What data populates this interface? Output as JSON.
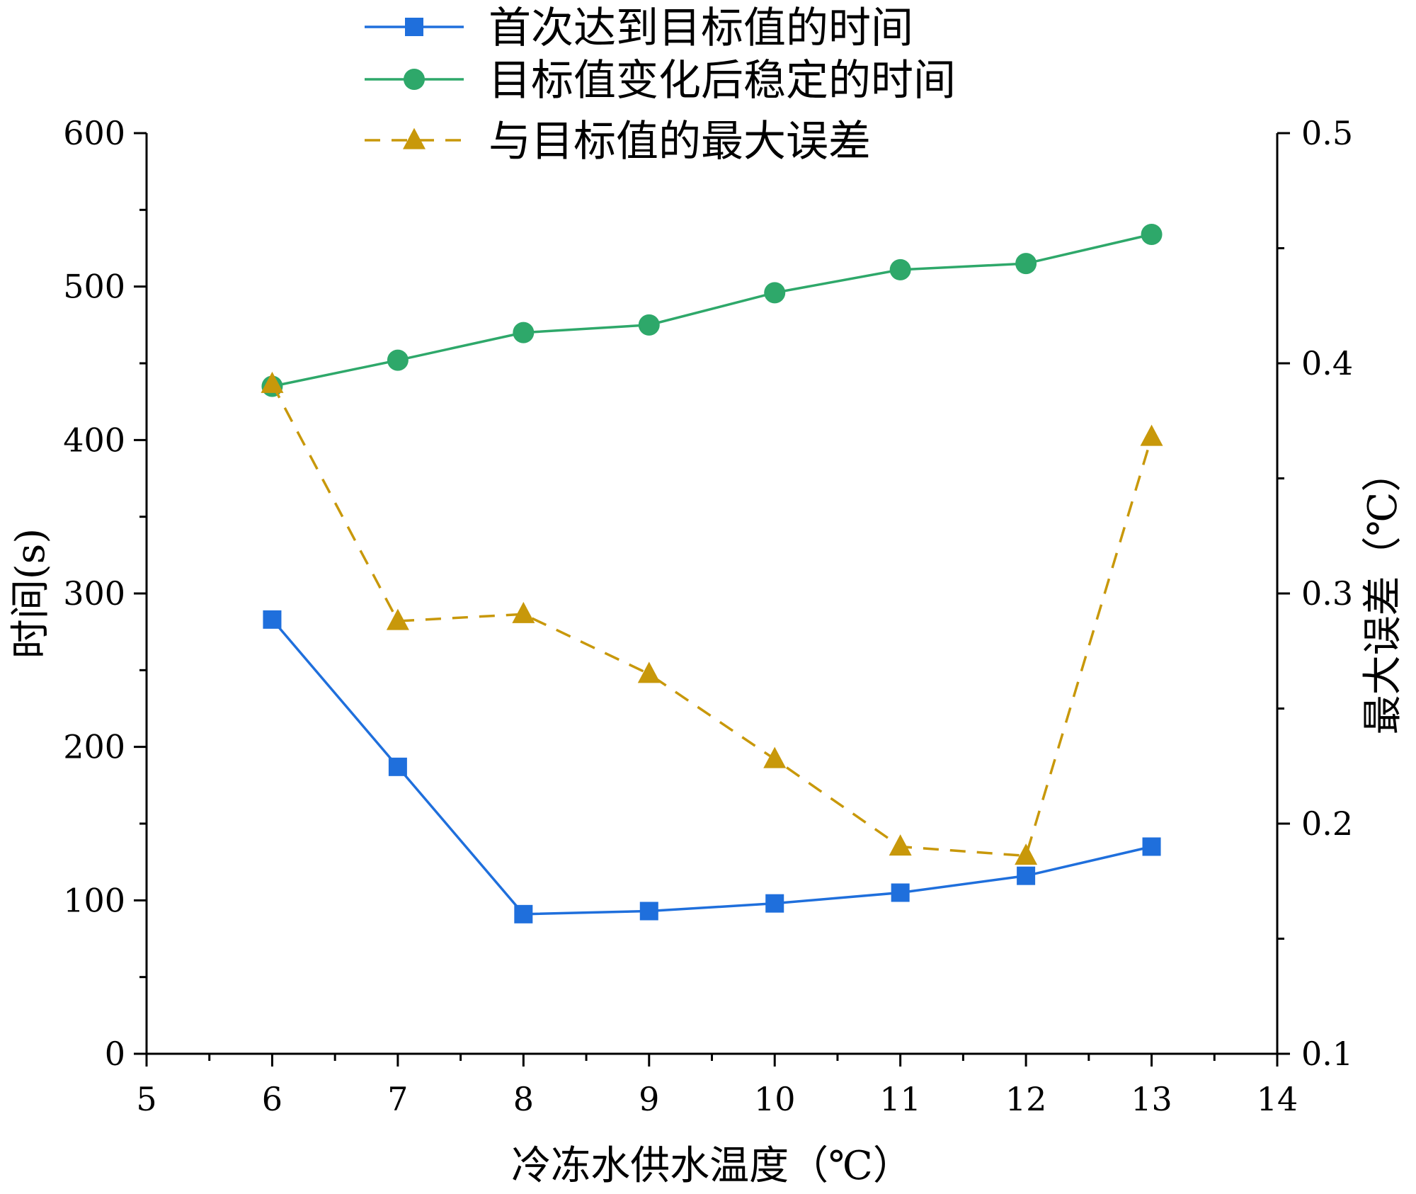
{
  "chart_data": {
    "type": "line",
    "title": "",
    "xlabel": "冷冻水供水温度（℃）",
    "ylabel": "时间(s)",
    "y2label": "最大误差（℃）",
    "xlim": [
      5,
      14
    ],
    "ylim": [
      0,
      600
    ],
    "y2lim": [
      0.1,
      0.5
    ],
    "x_ticks": [
      5,
      6,
      7,
      8,
      9,
      10,
      11,
      12,
      13,
      14
    ],
    "x_tick_labels": [
      "5",
      "6",
      "7",
      "8",
      "9",
      "10",
      "11",
      "12",
      "13",
      "14"
    ],
    "y_ticks": [
      0,
      100,
      200,
      300,
      400,
      500,
      600
    ],
    "y_tick_labels": [
      "0",
      "100",
      "200",
      "300",
      "400",
      "500",
      "600"
    ],
    "y2_ticks": [
      0.1,
      0.2,
      0.3,
      0.4,
      0.5
    ],
    "y2_tick_labels": [
      "0.1",
      "0.2",
      "0.3",
      "0.4",
      "0.5"
    ],
    "legend_position": "top-center",
    "grid": false,
    "x": [
      6,
      7,
      8,
      9,
      10,
      11,
      12,
      13
    ],
    "series": [
      {
        "name": "首次达到目标值的时间",
        "axis": "left",
        "color": "#1f6fdc",
        "marker": "square",
        "line_style": "solid",
        "values": [
          283,
          187,
          91,
          93,
          98,
          105,
          116,
          135
        ]
      },
      {
        "name": "目标值变化后稳定的时间",
        "axis": "left",
        "color": "#2ea86a",
        "marker": "circle",
        "line_style": "solid",
        "values": [
          435,
          452,
          470,
          475,
          496,
          511,
          515,
          534
        ]
      },
      {
        "name": "与目标值的最大误差",
        "axis": "right",
        "color": "#c8980a",
        "marker": "triangle",
        "line_style": "dashed",
        "values": [
          0.391,
          0.288,
          0.291,
          0.265,
          0.228,
          0.19,
          0.186,
          0.368
        ]
      }
    ]
  }
}
